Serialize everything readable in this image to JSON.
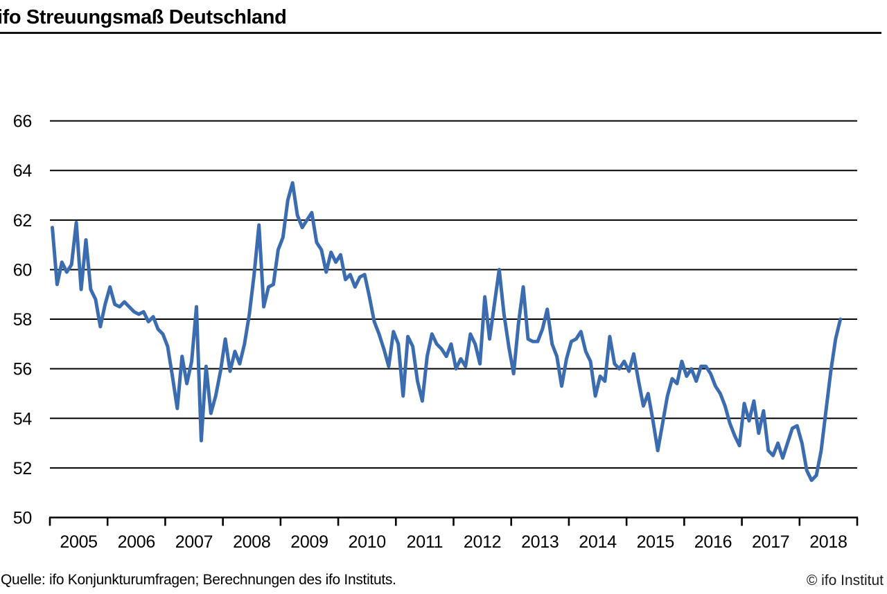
{
  "header": {
    "title": "ifo Streuungsmaß Deutschland"
  },
  "footer": {
    "source": "Quelle: ifo Konjunkturumfragen; Berechnungen des ifo Instituts.",
    "copyright": "© ifo Institut"
  },
  "chart_data": {
    "type": "line",
    "title": "ifo Streuungsmaß Deutschland",
    "x_labels": [
      "2005",
      "2006",
      "2007",
      "2008",
      "2009",
      "2010",
      "2011",
      "2012",
      "2013",
      "2014",
      "2015",
      "2016",
      "2017",
      "2018"
    ],
    "y_ticks": [
      66,
      64,
      62,
      60,
      58,
      56,
      54,
      52,
      50
    ],
    "y_tick_labels": [
      "66",
      "64",
      "62",
      "60",
      "58",
      "56",
      "54",
      "52",
      "50"
    ],
    "ylim": [
      50,
      66
    ],
    "x_range": {
      "start": "2005-01",
      "end": "2018-09",
      "frequency": "monthly"
    },
    "grid": true,
    "legend_position": "none",
    "line_color": "#3B6CB0",
    "axis_color": "#000000",
    "series": [
      {
        "name": "ifo Streuungsmaß Deutschland",
        "values": [
          61.7,
          59.4,
          60.3,
          59.9,
          60.2,
          61.9,
          59.2,
          61.2,
          59.2,
          58.8,
          57.7,
          58.6,
          59.3,
          58.6,
          58.5,
          58.7,
          58.5,
          58.3,
          58.2,
          58.3,
          57.9,
          58.1,
          57.6,
          57.4,
          56.9,
          55.7,
          54.4,
          56.5,
          55.4,
          56.3,
          58.5,
          53.1,
          56.1,
          54.2,
          54.9,
          55.9,
          57.2,
          55.9,
          56.7,
          56.2,
          57.0,
          58.2,
          59.8,
          61.8,
          58.5,
          59.3,
          59.4,
          60.8,
          61.3,
          62.8,
          63.5,
          62.2,
          61.7,
          62.0,
          62.3,
          61.1,
          60.8,
          59.9,
          60.7,
          60.3,
          60.6,
          59.6,
          59.8,
          59.3,
          59.7,
          59.8,
          58.9,
          57.9,
          57.4,
          56.8,
          56.1,
          57.5,
          57.0,
          54.9,
          57.3,
          56.9,
          55.5,
          54.7,
          56.5,
          57.4,
          57.0,
          56.8,
          56.5,
          57.0,
          56.0,
          56.4,
          56.1,
          57.4,
          57.0,
          56.2,
          58.9,
          57.2,
          58.6,
          60.0,
          58.2,
          56.9,
          55.8,
          57.8,
          59.3,
          57.2,
          57.1,
          57.1,
          57.6,
          58.4,
          57.0,
          56.5,
          55.3,
          56.4,
          57.1,
          57.2,
          57.5,
          56.7,
          56.3,
          54.9,
          55.7,
          55.5,
          57.3,
          56.2,
          56.0,
          56.3,
          55.9,
          56.6,
          55.5,
          54.5,
          55.0,
          53.9,
          52.7,
          53.8,
          54.9,
          55.6,
          55.4,
          56.3,
          55.7,
          56.0,
          55.5,
          56.1,
          56.1,
          55.8,
          55.3,
          55.0,
          54.5,
          53.8,
          53.3,
          52.9,
          54.6,
          53.9,
          54.7,
          53.4,
          54.3,
          52.7,
          52.5,
          53.0,
          52.4,
          53.0,
          53.6,
          53.7,
          53.0,
          51.9,
          51.5,
          51.7,
          52.7,
          54.3,
          55.9,
          57.2,
          58.0
        ]
      }
    ]
  }
}
